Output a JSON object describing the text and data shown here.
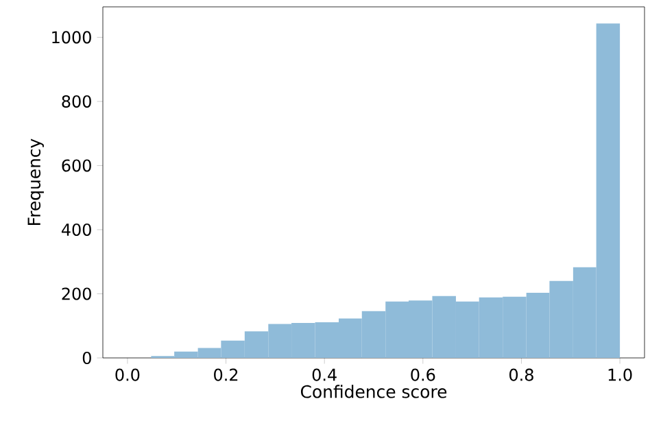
{
  "chart_data": {
    "type": "histogram",
    "xlabel": "Confidence score",
    "ylabel": "Frequency",
    "color": "#8fbbd9",
    "bins": [
      0.048,
      0.095,
      0.143,
      0.19,
      0.238,
      0.286,
      0.333,
      0.381,
      0.429,
      0.476,
      0.524,
      0.571,
      0.619,
      0.667,
      0.714,
      0.762,
      0.81,
      0.857,
      0.905,
      0.952,
      1
    ],
    "values": [
      6,
      20,
      31,
      54,
      83,
      106,
      109,
      111,
      123,
      146,
      176,
      179,
      193,
      176,
      189,
      191,
      203,
      240,
      283,
      1043
    ],
    "xlim": [
      -0.05,
      1.05
    ],
    "ylim": [
      0,
      1095
    ],
    "xticks": [
      {
        "value": 0,
        "label": "0.0"
      },
      0.2,
      0.4,
      0.6,
      0.8,
      {
        "value": 1,
        "label": "1.0"
      }
    ],
    "yticks": [
      0,
      200,
      400,
      600,
      800,
      1000
    ],
    "grid": false
  }
}
